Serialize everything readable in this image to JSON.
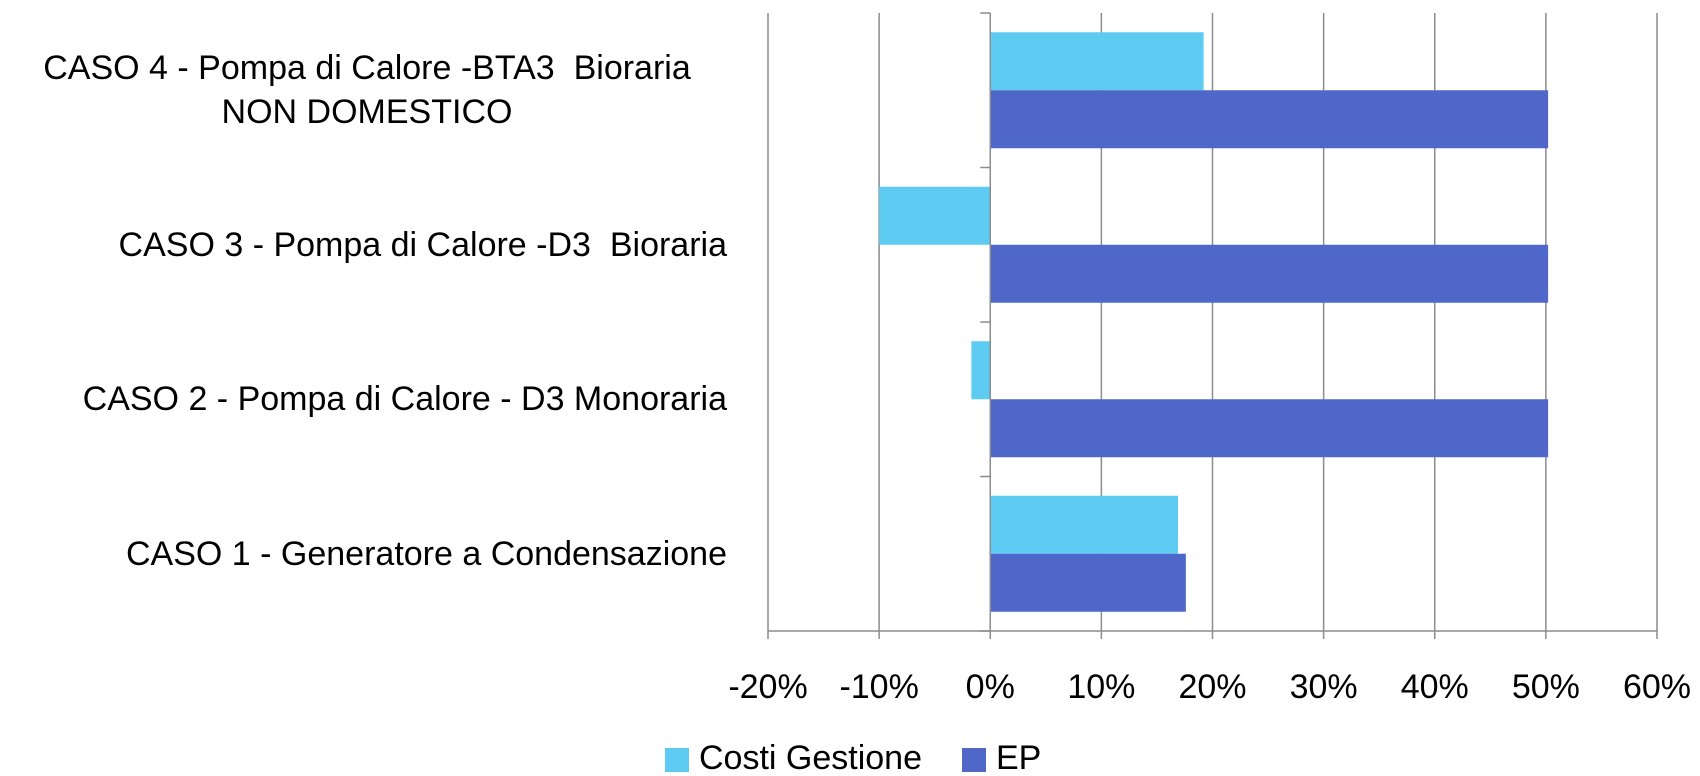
{
  "chart_data": {
    "type": "bar",
    "orientation": "horizontal",
    "categories": [
      "CASO 1 - Generatore a Condensazione",
      "CASO 2 - Pompa di Calore - D3 Monoraria",
      "CASO 3 - Pompa di Calore -D3  Bioraria",
      "CASO 4 - Pompa di Calore -BTA3  Bioraria NON DOMESTICO"
    ],
    "series": [
      {
        "name": "Costi Gestione",
        "color": "#5ecbf2",
        "values": [
          16.9,
          -1.7,
          -10,
          19.2
        ]
      },
      {
        "name": "EP",
        "color": "#4f67c8",
        "values": [
          17.6,
          50.2,
          50.2,
          50.2
        ]
      }
    ],
    "xlim": [
      -20,
      60
    ],
    "xticks": [
      {
        "value": -20,
        "label": "-20%"
      },
      {
        "value": -10,
        "label": "-10%"
      },
      {
        "value": 0,
        "label": "0%"
      },
      {
        "value": 10,
        "label": "10%"
      },
      {
        "value": 20,
        "label": "20%"
      },
      {
        "value": 30,
        "label": "30%"
      },
      {
        "value": 40,
        "label": "40%"
      },
      {
        "value": 50,
        "label": "50%"
      },
      {
        "value": 60,
        "label": "60%"
      }
    ],
    "grid": true,
    "legend": "bottom"
  }
}
